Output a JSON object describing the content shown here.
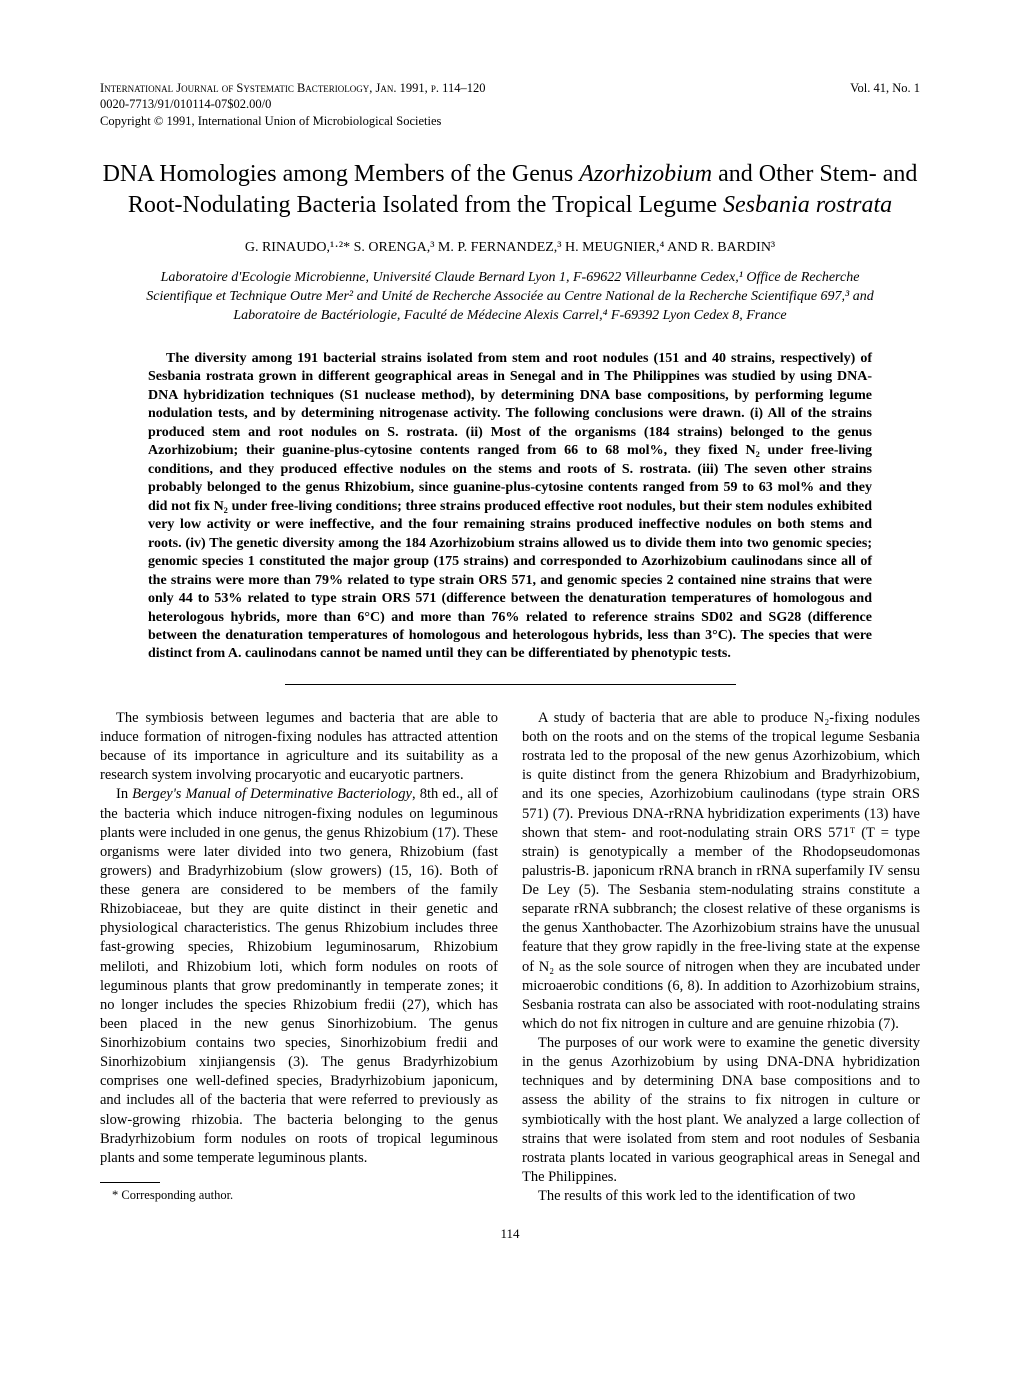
{
  "header": {
    "journal_line": "International Journal of Systematic Bacteriology, Jan. 1991, p. 114–120",
    "code_line": "0020-7713/91/010114-07$02.00/0",
    "copyright_line": "Copyright © 1991, International Union of Microbiological Societies",
    "volume": "Vol. 41, No. 1"
  },
  "title": {
    "line1": "DNA Homologies among Members of the Genus ",
    "italic1": "Azorhizobium",
    "line2": " and Other Stem- and Root-Nodulating Bacteria Isolated from the Tropical Legume ",
    "italic2": "Sesbania rostrata"
  },
  "authors": "G. RINAUDO,¹·²* S. ORENGA,³ M. P. FERNANDEZ,³ H. MEUGNIER,⁴ AND R. BARDIN³",
  "affiliations": "Laboratoire d'Ecologie Microbienne, Université Claude Bernard Lyon 1, F-69622 Villeurbanne Cedex,¹ Office de Recherche Scientifique et Technique Outre Mer² and Unité de Recherche Associée au Centre National de la Recherche Scientifique 697,³ and Laboratoire de Bactériologie, Faculté de Médecine Alexis Carrel,⁴ F-69392 Lyon Cedex 8, France",
  "abstract": "The diversity among 191 bacterial strains isolated from stem and root nodules (151 and 40 strains, respectively) of Sesbania rostrata grown in different geographical areas in Senegal and in The Philippines was studied by using DNA-DNA hybridization techniques (S1 nuclease method), by determining DNA base compositions, by performing legume nodulation tests, and by determining nitrogenase activity. The following conclusions were drawn. (i) All of the strains produced stem and root nodules on S. rostrata. (ii) Most of the organisms (184 strains) belonged to the genus Azorhizobium; their guanine-plus-cytosine contents ranged from 66 to 68 mol%, they fixed N₂ under free-living conditions, and they produced effective nodules on the stems and roots of S. rostrata. (iii) The seven other strains probably belonged to the genus Rhizobium, since guanine-plus-cytosine contents ranged from 59 to 63 mol% and they did not fix N₂ under free-living conditions; three strains produced effective root nodules, but their stem nodules exhibited very low activity or were ineffective, and the four remaining strains produced ineffective nodules on both stems and roots. (iv) The genetic diversity among the 184 Azorhizobium strains allowed us to divide them into two genomic species; genomic species 1 constituted the major group (175 strains) and corresponded to Azorhizobium caulinodans since all of the strains were more than 79% related to type strain ORS 571, and genomic species 2 contained nine strains that were only 44 to 53% related to type strain ORS 571 (difference between the denaturation temperatures of homologous and heterologous hybrids, more than 6°C) and more than 76% related to reference strains SD02 and SG28 (difference between the denaturation temperatures of homologous and heterologous hybrids, less than 3°C). The species that were distinct from A. caulinodans cannot be named until they can be differentiated by phenotypic tests.",
  "body": {
    "p1": "The symbiosis between legumes and bacteria that are able to induce formation of nitrogen-fixing nodules has attracted attention because of its importance in agriculture and its suitability as a research system involving procaryotic and eucaryotic partners.",
    "p2a": "In ",
    "p2i": "Bergey's Manual of Determinative Bacteriology",
    "p2b": ", 8th ed., all of the bacteria which induce nitrogen-fixing nodules on leguminous plants were included in one genus, the genus Rhizobium (17). These organisms were later divided into two genera, Rhizobium (fast growers) and Bradyrhizobium (slow growers) (15, 16). Both of these genera are considered to be members of the family Rhizobiaceae, but they are quite distinct in their genetic and physiological characteristics. The genus Rhizobium includes three fast-growing species, Rhizobium leguminosarum, Rhizobium meliloti, and Rhizobium loti, which form nodules on roots of leguminous plants that grow predominantly in temperate zones; it no longer includes the species Rhizobium fredii (27), which has been placed in the new genus Sinorhizobium. The genus Sinorhizobium contains two species, Sinorhizobium fredii and Sinorhizobium xinjiangensis (3). The genus Bradyrhizobium comprises one well-defined species, Bradyrhizobium japonicum, and includes all of the bacteria that were referred to previously as slow-growing rhizobia. The bacteria belonging to the genus Bradyrhizobium form nodules on roots of tropical leguminous plants and some temperate leguminous plants.",
    "p3": "A study of bacteria that are able to produce N₂-fixing nodules both on the roots and on the stems of the tropical legume Sesbania rostrata led to the proposal of the new genus Azorhizobium, which is quite distinct from the genera Rhizobium and Bradyrhizobium, and its one species, Azorhizobium caulinodans (type strain ORS 571) (7). Previous DNA-rRNA hybridization experiments (13) have shown that stem- and root-nodulating strain ORS 571ᵀ (T = type strain) is genotypically a member of the Rhodopseudomonas palustris-B. japonicum rRNA branch in rRNA superfamily IV sensu De Ley (5). The Sesbania stem-nodulating strains constitute a separate rRNA subbranch; the closest relative of these organisms is the genus Xanthobacter. The Azorhizobium strains have the unusual feature that they grow rapidly in the free-living state at the expense of N₂ as the sole source of nitrogen when they are incubated under microaerobic conditions (6, 8). In addition to Azorhizobium strains, Sesbania rostrata can also be associated with root-nodulating strains which do not fix nitrogen in culture and are genuine rhizobia (7).",
    "p4": "The purposes of our work were to examine the genetic diversity in the genus Azorhizobium by using DNA-DNA hybridization techniques and by determining DNA base compositions and to assess the ability of the strains to fix nitrogen in culture or symbiotically with the host plant. We analyzed a large collection of strains that were isolated from stem and root nodules of Sesbania rostrata plants located in various geographical areas in Senegal and The Philippines.",
    "p5": "The results of this work led to the identification of two"
  },
  "footnote": "* Corresponding author.",
  "page_number": "114"
}
